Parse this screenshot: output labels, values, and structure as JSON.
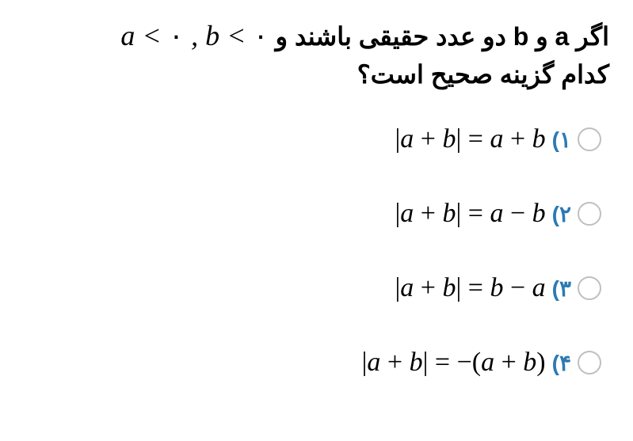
{
  "question": {
    "line1_rtl_part1": "اگر a و b دو عدد حقیقی باشند و ",
    "line1_math": "a < ۰ , b < ۰",
    "line2": "کدام گزینه صحیح است؟"
  },
  "options": [
    {
      "num": "۱)",
      "math": "|a + b| = a + b"
    },
    {
      "num": "۲)",
      "math": "|a + b| = a − b"
    },
    {
      "num": "۳)",
      "math": "|a + b| = b − a"
    },
    {
      "num": "۴)",
      "math": "|a + b| = −(a + b)"
    }
  ],
  "styles": {
    "accent_color": "#2b7ab3",
    "text_color": "#000000",
    "radio_border": "#bfbfbf",
    "background": "#ffffff",
    "question_fontsize": 32,
    "math_fontsize": 34,
    "label_fontsize": 28
  }
}
